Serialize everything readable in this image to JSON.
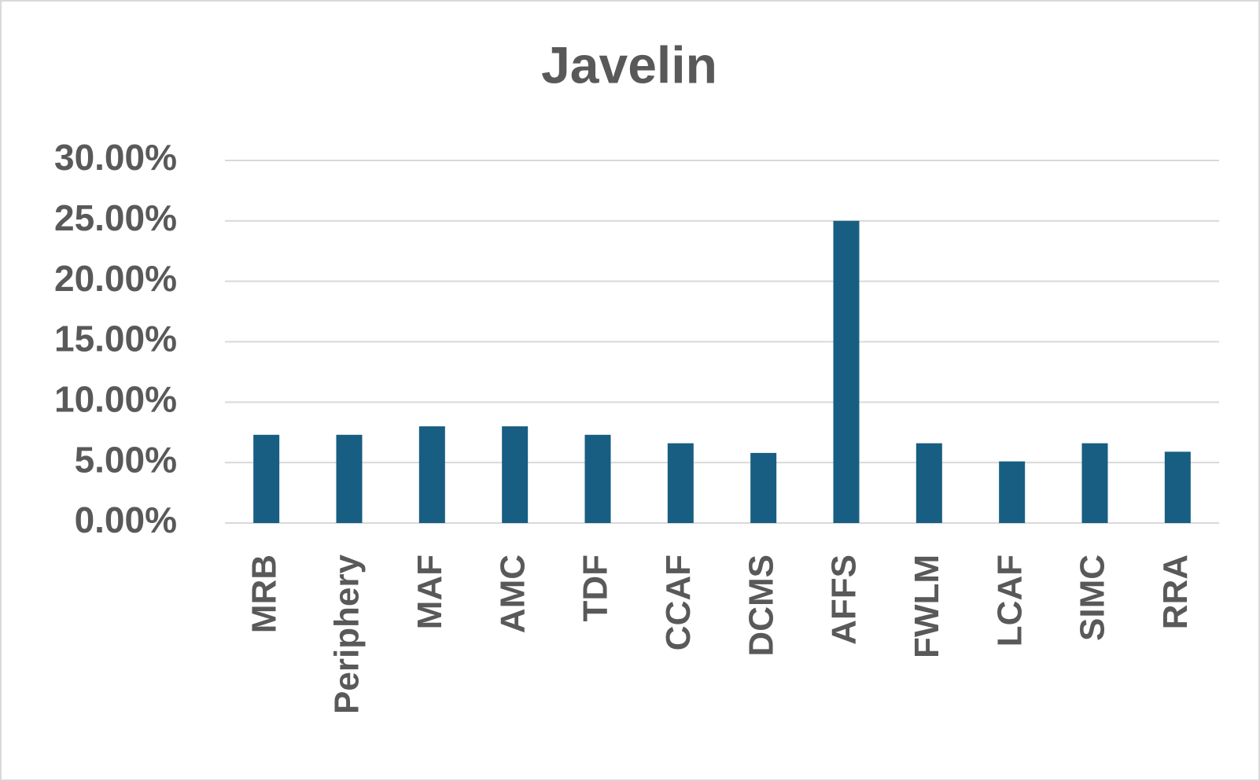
{
  "chart_data": {
    "type": "bar",
    "title": "Javelin",
    "categories": [
      "MRB",
      "Periphery",
      "MAF",
      "AMC",
      "TDF",
      "CCAF",
      "DCMS",
      "AFFS",
      "FWLM",
      "LCAF",
      "SIMC",
      "RRA"
    ],
    "values": [
      7.3,
      7.3,
      8.0,
      8.0,
      7.3,
      6.6,
      5.8,
      25.0,
      6.6,
      5.1,
      6.6,
      5.9
    ],
    "color": "#175e82",
    "ylim": [
      0,
      30
    ],
    "yticks": [
      {
        "value": 0,
        "label": "0.00%"
      },
      {
        "value": 5,
        "label": "5.00%"
      },
      {
        "value": 10,
        "label": "10.00%"
      },
      {
        "value": 15,
        "label": "15.00%"
      },
      {
        "value": 20,
        "label": "20.00%"
      },
      {
        "value": 25,
        "label": "25.00%"
      },
      {
        "value": 30,
        "label": "30.00%"
      }
    ],
    "grid": true
  }
}
